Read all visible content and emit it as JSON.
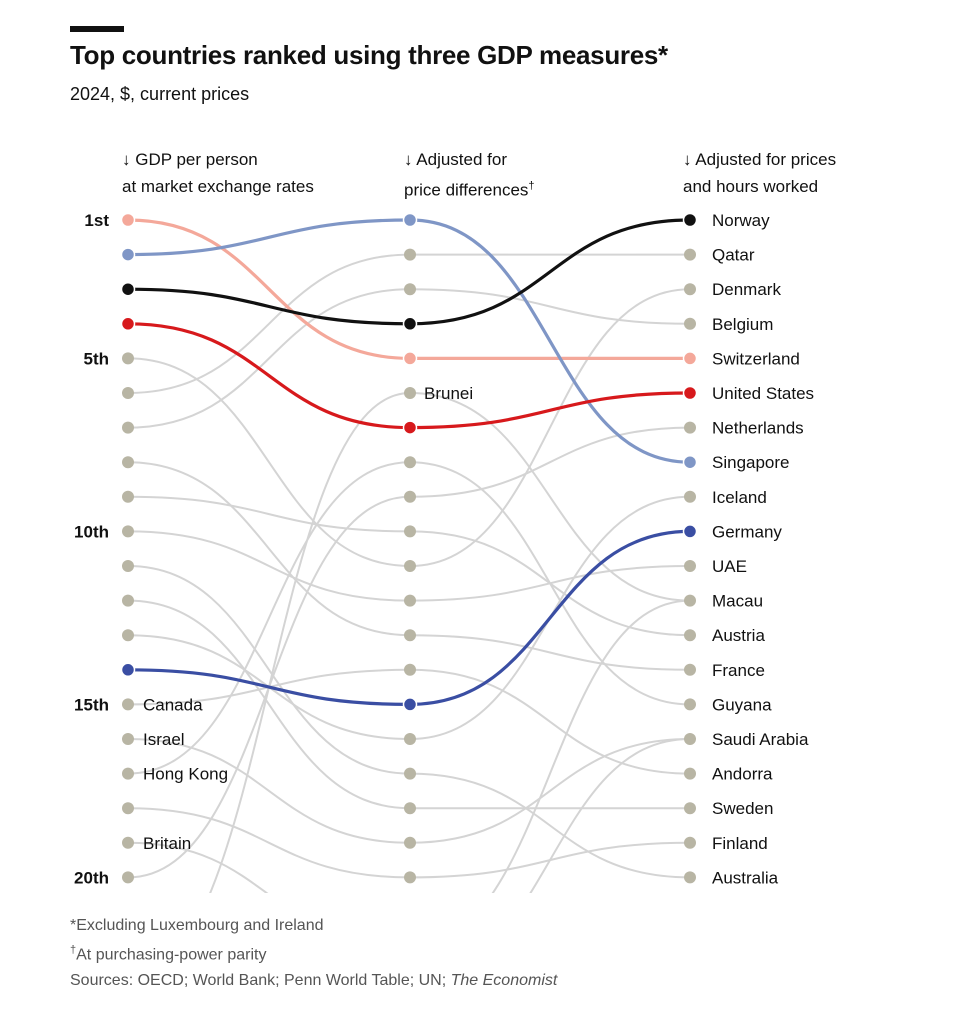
{
  "header": {
    "title": "Top countries ranked using three GDP measures*",
    "subtitle": "2024, $, current prices"
  },
  "columns": [
    {
      "line1": "↓ GDP per person",
      "line2": "at market exchange rates",
      "sup": ""
    },
    {
      "line1": "↓ Adjusted for",
      "line2": "price differences",
      "sup": "†"
    },
    {
      "line1": "↓ Adjusted for prices",
      "line2": "and hours worked",
      "sup": ""
    }
  ],
  "rank_labels": [
    {
      "rank": 1,
      "label": "1st"
    },
    {
      "rank": 5,
      "label": "5th"
    },
    {
      "rank": 10,
      "label": "10th"
    },
    {
      "rank": 15,
      "label": "15th"
    },
    {
      "rank": 20,
      "label": "20th"
    }
  ],
  "footnotes": {
    "note1": "*Excluding Luxembourg and Ireland",
    "note2_mark": "†",
    "note2": "At purchasing-power parity",
    "sources_prefix": "Sources: OECD; World Bank; Penn World Table; UN; ",
    "sources_italic": "The Economist"
  },
  "colors": {
    "dot_grey": "#b8b5a4",
    "line_grey": "#d4d4d4",
    "norway": "#111111",
    "switzerland": "#f4a89a",
    "united_states": "#d7191c",
    "singapore": "#7f96c6",
    "germany": "#3a4ea3"
  },
  "chart_data": {
    "type": "slope",
    "stages": [
      "GDP per person at market exchange rates",
      "Adjusted for price differences",
      "Adjusted for prices and hours worked"
    ],
    "ranks": 20,
    "series": [
      {
        "name": "Switzerland",
        "ranks": [
          1,
          5,
          5
        ],
        "color": "#f4a89a",
        "highlight": true
      },
      {
        "name": "Singapore",
        "ranks": [
          2,
          1,
          8
        ],
        "color": "#7f96c6",
        "highlight": true
      },
      {
        "name": "Norway",
        "ranks": [
          3,
          4,
          1
        ],
        "color": "#111111",
        "highlight": true
      },
      {
        "name": "United States",
        "ranks": [
          4,
          7,
          6
        ],
        "color": "#d7191c",
        "highlight": true
      },
      {
        "name": "Germany",
        "ranks": [
          14,
          15,
          10
        ],
        "color": "#3a4ea3",
        "highlight": true
      }
    ],
    "labels_stage1": [
      {
        "rank": 15,
        "name": "Canada"
      },
      {
        "rank": 16,
        "name": "Israel"
      },
      {
        "rank": 17,
        "name": "Hong Kong"
      },
      {
        "rank": 19,
        "name": "Britain"
      }
    ],
    "labels_stage2": [
      {
        "rank": 6,
        "name": "Brunei"
      }
    ],
    "labels_stage3": [
      "Norway",
      "Qatar",
      "Denmark",
      "Belgium",
      "Switzerland",
      "United States",
      "Netherlands",
      "Singapore",
      "Iceland",
      "Germany",
      "UAE",
      "Macau",
      "Austria",
      "France",
      "Guyana",
      "Saudi Arabia",
      "Andorra",
      "Sweden",
      "Finland",
      "Australia"
    ],
    "grey_links": [
      {
        "from": [
          0,
          5
        ],
        "to": [
          1,
          11
        ]
      },
      {
        "from": [
          0,
          6
        ],
        "to": [
          1,
          2
        ]
      },
      {
        "from": [
          0,
          7
        ],
        "to": [
          1,
          3
        ]
      },
      {
        "from": [
          0,
          8
        ],
        "to": [
          1,
          13
        ]
      },
      {
        "from": [
          0,
          9
        ],
        "to": [
          1,
          10
        ]
      },
      {
        "from": [
          0,
          10
        ],
        "to": [
          1,
          12
        ]
      },
      {
        "from": [
          0,
          11
        ],
        "to": [
          1,
          17
        ]
      },
      {
        "from": [
          0,
          12
        ],
        "to": [
          1,
          18
        ]
      },
      {
        "from": [
          0,
          13
        ],
        "to": [
          1,
          16
        ]
      },
      {
        "from": [
          0,
          15
        ],
        "to": [
          1,
          14
        ]
      },
      {
        "from": [
          0,
          16
        ],
        "to": [
          1,
          19
        ]
      },
      {
        "from": [
          0,
          17
        ],
        "to": [
          1,
          8
        ]
      },
      {
        "from": [
          0,
          18
        ],
        "to": [
          1,
          20
        ]
      },
      {
        "from": [
          0,
          19
        ],
        "to": [
          1,
          22
        ]
      },
      {
        "from": [
          0,
          20
        ],
        "to": [
          1,
          9
        ]
      },
      {
        "from": [
          0,
          23
        ],
        "to": [
          1,
          6
        ]
      },
      {
        "from": [
          0,
          24
        ],
        "to": [
          1,
          22
        ]
      },
      {
        "from": [
          1,
          2
        ],
        "to": [
          2,
          2
        ]
      },
      {
        "from": [
          1,
          3
        ],
        "to": [
          2,
          4
        ]
      },
      {
        "from": [
          1,
          6
        ],
        "to": [
          2,
          12
        ]
      },
      {
        "from": [
          1,
          8
        ],
        "to": [
          2,
          15
        ]
      },
      {
        "from": [
          1,
          9
        ],
        "to": [
          2,
          7
        ]
      },
      {
        "from": [
          1,
          10
        ],
        "to": [
          2,
          13
        ]
      },
      {
        "from": [
          1,
          11
        ],
        "to": [
          2,
          3
        ]
      },
      {
        "from": [
          1,
          12
        ],
        "to": [
          2,
          11
        ]
      },
      {
        "from": [
          1,
          13
        ],
        "to": [
          2,
          14
        ]
      },
      {
        "from": [
          1,
          14
        ],
        "to": [
          2,
          17
        ]
      },
      {
        "from": [
          1,
          16
        ],
        "to": [
          2,
          9
        ]
      },
      {
        "from": [
          1,
          17
        ],
        "to": [
          2,
          20
        ]
      },
      {
        "from": [
          1,
          18
        ],
        "to": [
          2,
          18
        ]
      },
      {
        "from": [
          1,
          19
        ],
        "to": [
          2,
          16
        ]
      },
      {
        "from": [
          1,
          20
        ],
        "to": [
          2,
          19
        ]
      },
      {
        "from": [
          1,
          22
        ],
        "to": [
          2,
          12
        ]
      },
      {
        "from": [
          1,
          23
        ],
        "to": [
          2,
          16
        ]
      }
    ]
  }
}
